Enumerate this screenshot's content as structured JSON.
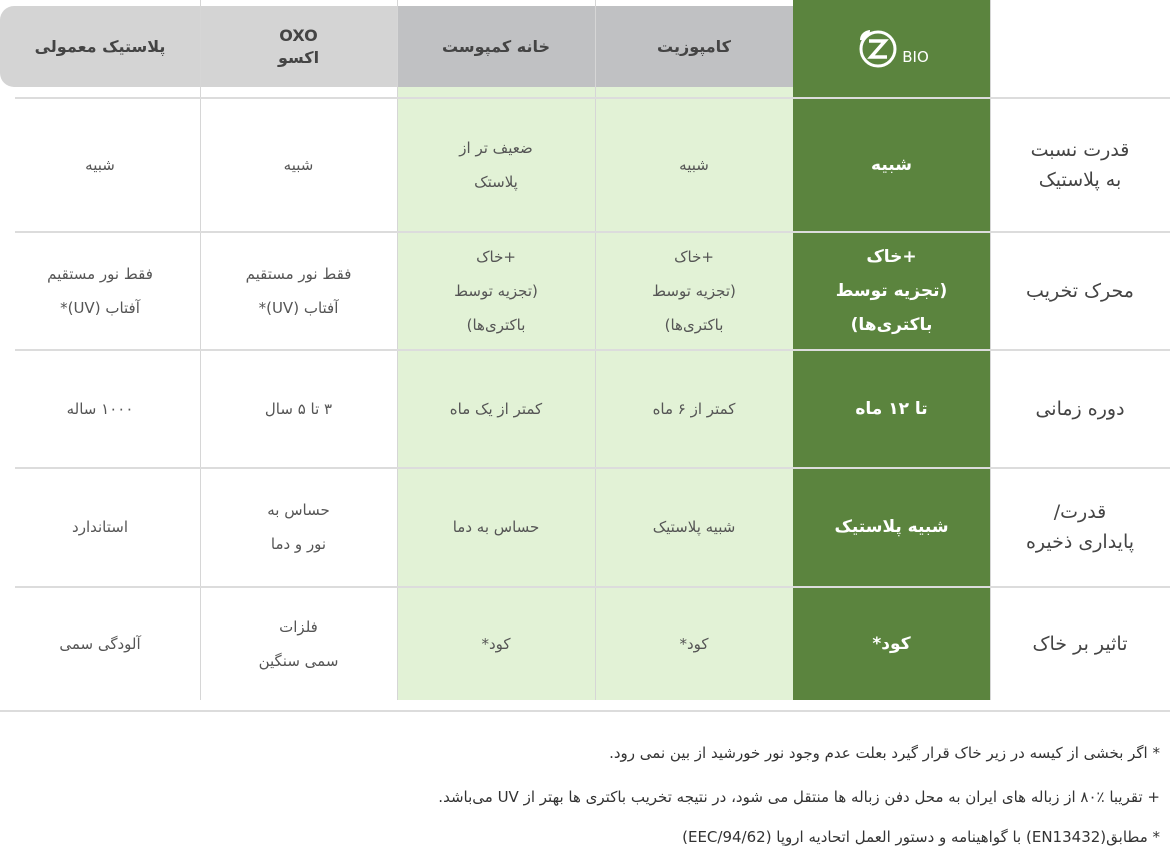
{
  "brand": {
    "logo_text": "BIO",
    "colors": {
      "green": "#5b843e",
      "light_green": "#e2f2d6",
      "header_gray": "#d4d4d4",
      "header_dark_gray": "#c0c1c3"
    }
  },
  "headers": {
    "composite": "کامپوزیت",
    "compost": "خانه کمپوست",
    "oxo": "OXO\nاکسو",
    "plastic": "پلاستیک معمولی"
  },
  "rows": [
    {
      "label": "قدرت نسبت\nبه پلاستیک",
      "bio": "شبیه",
      "composite": "شبیه",
      "compost": "ضعیف تر از\nپلاستک",
      "oxo": "شبیه",
      "plastic": "شبیه"
    },
    {
      "label": "محرک تخریب",
      "bio": "+خاک\n(تجزیه توسط\nباکتری‌ها)",
      "composite": "+خاک\n(تجزیه توسط\nباکتری‌ها)",
      "compost": "+خاک\n(تجزیه توسط\nباکتری‌ها)",
      "oxo": "فقط نور مستقیم\nآفتاب (UV)*",
      "plastic": "فقط نور مستقیم\nآفتاب (UV)*"
    },
    {
      "label": "دوره زمانی",
      "bio": "تا ۱۲ ماه",
      "composite": "کمتر از ۶ ماه",
      "compost": "کمتر از یک ماه",
      "oxo": "۳ تا ۵ سال",
      "plastic": "۱۰۰۰ ساله"
    },
    {
      "label": "قدرت/\nپایداری ذخیره",
      "bio": "شبیه پلاستیک",
      "composite": "شبیه پلاستیک",
      "compost": "حساس به دما",
      "oxo": "حساس به\nنور و دما",
      "plastic": "استاندارد"
    },
    {
      "label": "تاثیر بر خاک",
      "bio": "کود*",
      "composite": "کود*",
      "compost": "کود*",
      "oxo": "فلزات\nسمی سنگین",
      "plastic": "آلودگی سمی"
    }
  ],
  "footnotes": [
    "* اگر بخشی از کیسه در زیر خاک قرار گیرد بعلت عدم وجود نور خورشید  از بین نمی رود.",
    "+ تقریبا ٪۸۰ از زباله های ایران به محل دفن زباله ها منتقل می شود، در نتیجه تخریب باکتری ها بهتر از UV می‌باشد.",
    "* مطابق(EN13432) با گواهینامه و دستور العمل اتحادیه اروپا (EEC/94/62)"
  ]
}
